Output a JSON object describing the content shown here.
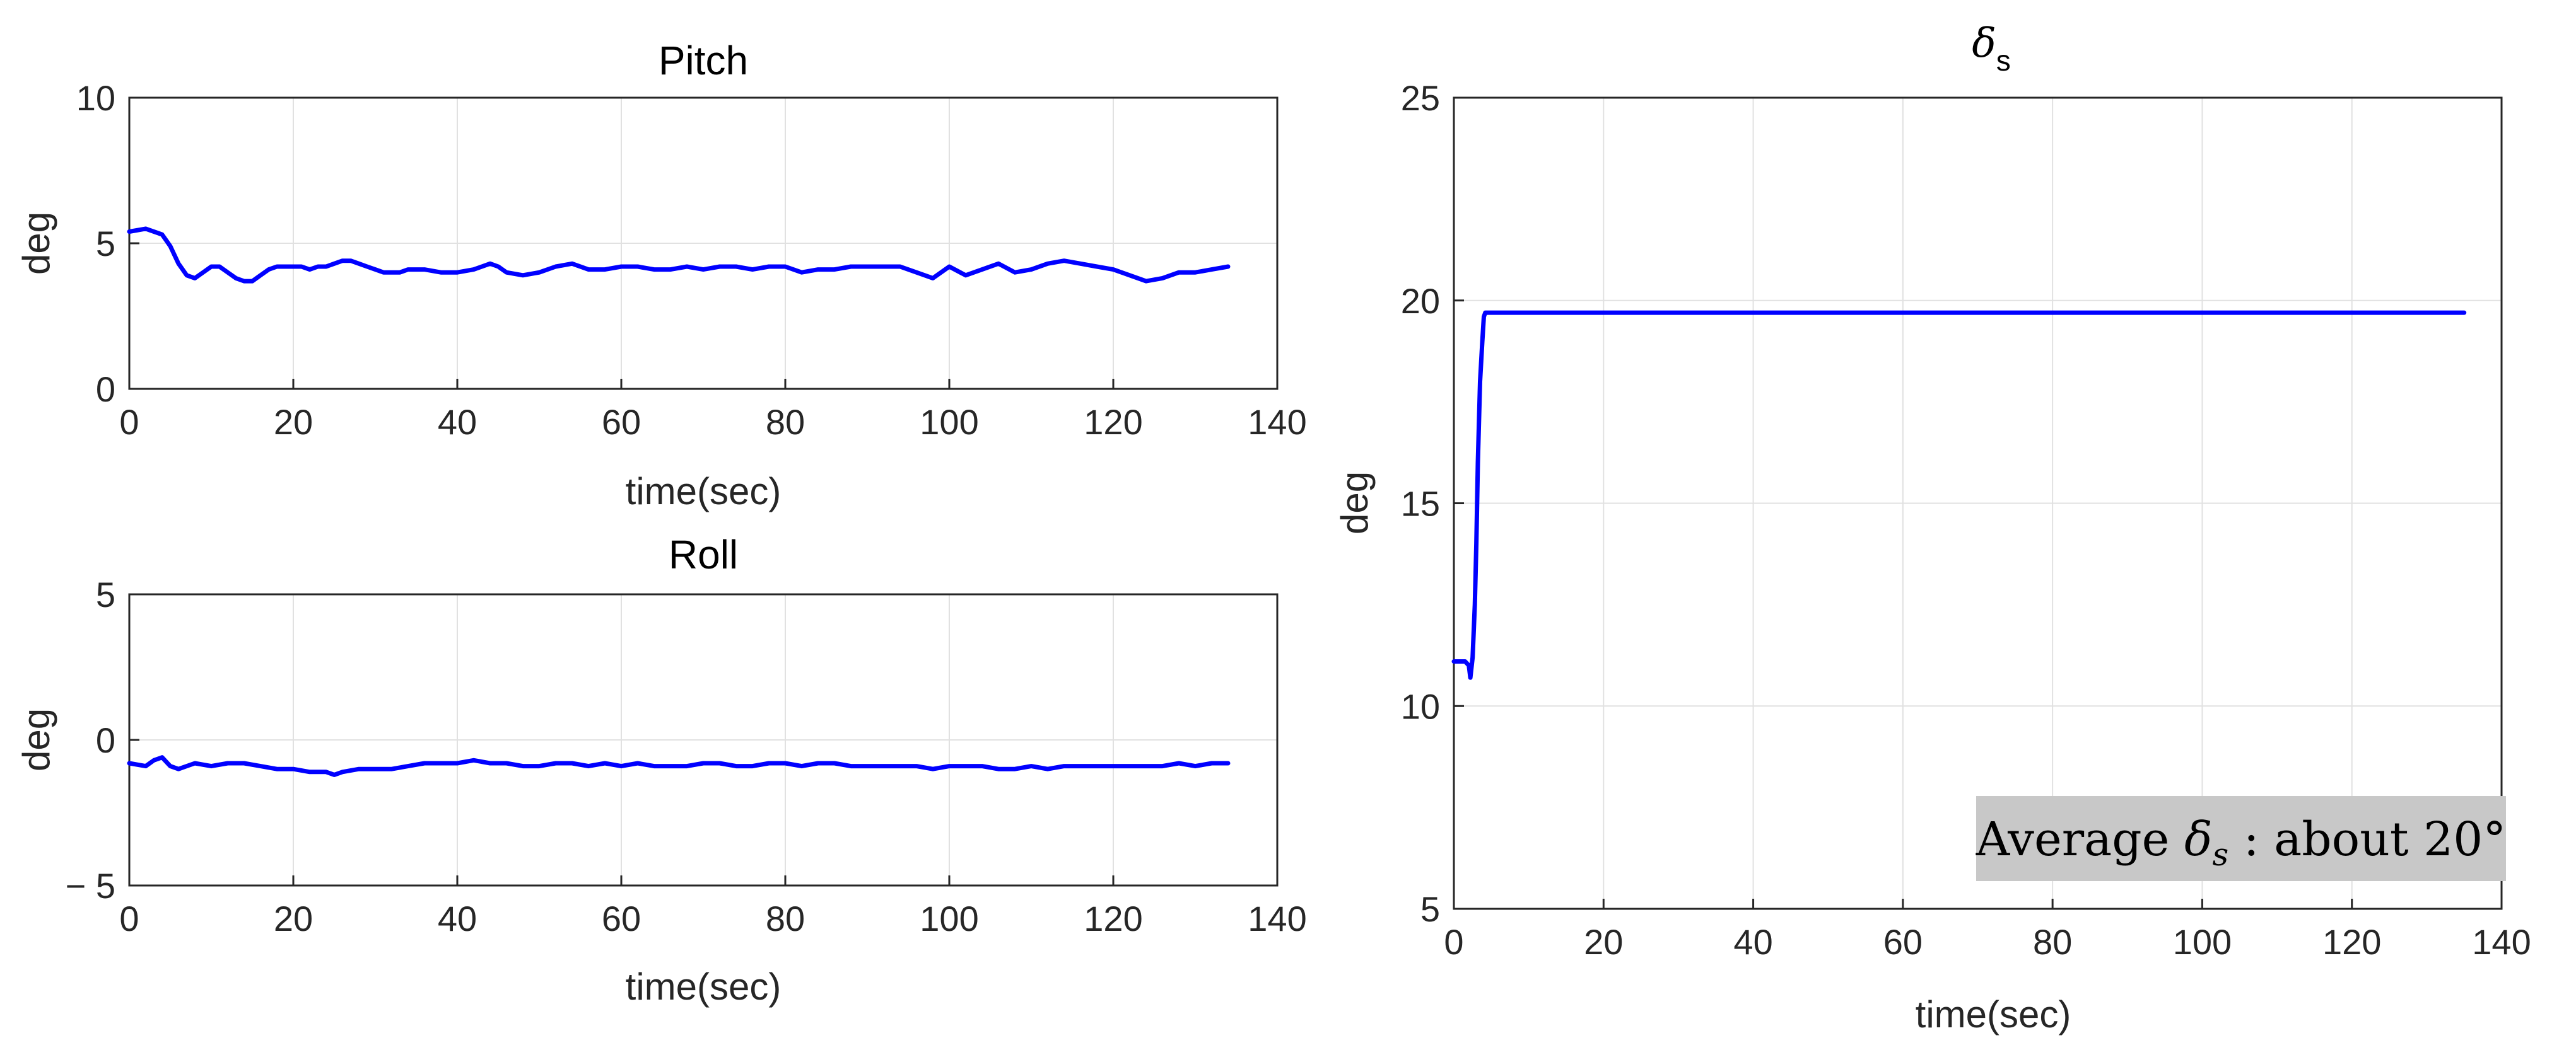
{
  "chart_data": [
    {
      "type": "line",
      "title": "Pitch",
      "xlabel": "time(sec)",
      "ylabel": "deg",
      "xlim": [
        0,
        140
      ],
      "ylim": [
        0,
        10
      ],
      "xticks": [
        "0",
        "20",
        "40",
        "60",
        "80",
        "100",
        "120",
        "140"
      ],
      "yticks": [
        "0",
        "5",
        "10"
      ],
      "grid": true,
      "series": [
        {
          "color": "#0000ff",
          "x": [
            0,
            2,
            4,
            5,
            6,
            7,
            8,
            9,
            10,
            11,
            12,
            13,
            14,
            15,
            16,
            17,
            18,
            19,
            20,
            21,
            22,
            23,
            24,
            25,
            26,
            27,
            28,
            29,
            30,
            31,
            32,
            33,
            34,
            36,
            38,
            40,
            42,
            44,
            45,
            46,
            48,
            50,
            52,
            54,
            56,
            58,
            60,
            62,
            64,
            66,
            68,
            70,
            72,
            74,
            76,
            78,
            80,
            82,
            84,
            86,
            88,
            90,
            92,
            94,
            96,
            98,
            100,
            102,
            104,
            106,
            108,
            110,
            112,
            114,
            116,
            118,
            120,
            122,
            124,
            126,
            128,
            130,
            132,
            134
          ],
          "y": [
            5.4,
            5.5,
            5.3,
            4.9,
            4.3,
            3.9,
            3.8,
            4.0,
            4.2,
            4.2,
            4.0,
            3.8,
            3.7,
            3.7,
            3.9,
            4.1,
            4.2,
            4.2,
            4.2,
            4.2,
            4.1,
            4.2,
            4.2,
            4.3,
            4.4,
            4.4,
            4.3,
            4.2,
            4.1,
            4.0,
            4.0,
            4.0,
            4.1,
            4.1,
            4.0,
            4.0,
            4.1,
            4.3,
            4.2,
            4.0,
            3.9,
            4.0,
            4.2,
            4.3,
            4.1,
            4.1,
            4.2,
            4.2,
            4.1,
            4.1,
            4.2,
            4.1,
            4.2,
            4.2,
            4.1,
            4.2,
            4.2,
            4.0,
            4.1,
            4.1,
            4.2,
            4.2,
            4.2,
            4.2,
            4.0,
            3.8,
            4.2,
            3.9,
            4.1,
            4.3,
            4.0,
            4.1,
            4.3,
            4.4,
            4.3,
            4.2,
            4.1,
            3.9,
            3.7,
            3.8,
            4.0,
            4.0,
            4.1,
            4.2
          ]
        }
      ]
    },
    {
      "type": "line",
      "title": "Roll",
      "xlabel": "time(sec)",
      "ylabel": "deg",
      "xlim": [
        0,
        140
      ],
      "ylim": [
        -5,
        5
      ],
      "xticks": [
        "0",
        "20",
        "40",
        "60",
        "80",
        "100",
        "120",
        "140"
      ],
      "yticks": [
        "− 5",
        "0",
        "5"
      ],
      "grid": true,
      "series": [
        {
          "color": "#0000ff",
          "x": [
            0,
            2,
            3,
            4,
            5,
            6,
            8,
            10,
            12,
            14,
            16,
            18,
            20,
            22,
            24,
            25,
            26,
            28,
            30,
            32,
            34,
            36,
            38,
            40,
            42,
            44,
            46,
            48,
            50,
            52,
            54,
            56,
            58,
            60,
            62,
            64,
            66,
            68,
            70,
            72,
            74,
            76,
            78,
            80,
            82,
            84,
            86,
            88,
            90,
            92,
            94,
            96,
            98,
            100,
            102,
            104,
            106,
            108,
            110,
            112,
            114,
            116,
            118,
            120,
            122,
            124,
            126,
            128,
            130,
            132,
            134
          ],
          "y": [
            -0.8,
            -0.9,
            -0.7,
            -0.6,
            -0.9,
            -1.0,
            -0.8,
            -0.9,
            -0.8,
            -0.8,
            -0.9,
            -1.0,
            -1.0,
            -1.1,
            -1.1,
            -1.2,
            -1.1,
            -1.0,
            -1.0,
            -1.0,
            -0.9,
            -0.8,
            -0.8,
            -0.8,
            -0.7,
            -0.8,
            -0.8,
            -0.9,
            -0.9,
            -0.8,
            -0.8,
            -0.9,
            -0.8,
            -0.9,
            -0.8,
            -0.9,
            -0.9,
            -0.9,
            -0.8,
            -0.8,
            -0.9,
            -0.9,
            -0.8,
            -0.8,
            -0.9,
            -0.8,
            -0.8,
            -0.9,
            -0.9,
            -0.9,
            -0.9,
            -0.9,
            -1.0,
            -0.9,
            -0.9,
            -0.9,
            -1.0,
            -1.0,
            -0.9,
            -1.0,
            -0.9,
            -0.9,
            -0.9,
            -0.9,
            -0.9,
            -0.9,
            -0.9,
            -0.8,
            -0.9,
            -0.8,
            -0.8
          ]
        }
      ]
    },
    {
      "type": "line",
      "title": "δ",
      "title_sub": "s",
      "xlabel": "time(sec)",
      "ylabel": "deg",
      "xlim": [
        0,
        140
      ],
      "ylim": [
        5,
        25
      ],
      "xticks": [
        "0",
        "20",
        "40",
        "60",
        "80",
        "100",
        "120",
        "140"
      ],
      "yticks": [
        "5",
        "10",
        "15",
        "20",
        "25"
      ],
      "grid": true,
      "annotation": {
        "prefix": "Average ",
        "symbol": "δ",
        "subscript": "s",
        "suffix": " : about 20°",
        "background": "#c8c8c8"
      },
      "series": [
        {
          "color": "#0000ff",
          "x": [
            0,
            1.5,
            2.0,
            2.2,
            2.5,
            2.8,
            3.0,
            3.2,
            3.5,
            3.8,
            4.0,
            4.2,
            4.5,
            5,
            10,
            20,
            30,
            40,
            50,
            60,
            70,
            80,
            90,
            100,
            110,
            120,
            130,
            135
          ],
          "y": [
            11.1,
            11.1,
            11.0,
            10.7,
            11.2,
            12.5,
            14.0,
            16.0,
            18.0,
            19.0,
            19.6,
            19.7,
            19.7,
            19.7,
            19.7,
            19.7,
            19.7,
            19.7,
            19.7,
            19.7,
            19.7,
            19.7,
            19.7,
            19.7,
            19.7,
            19.7,
            19.7,
            19.7
          ]
        }
      ]
    }
  ]
}
